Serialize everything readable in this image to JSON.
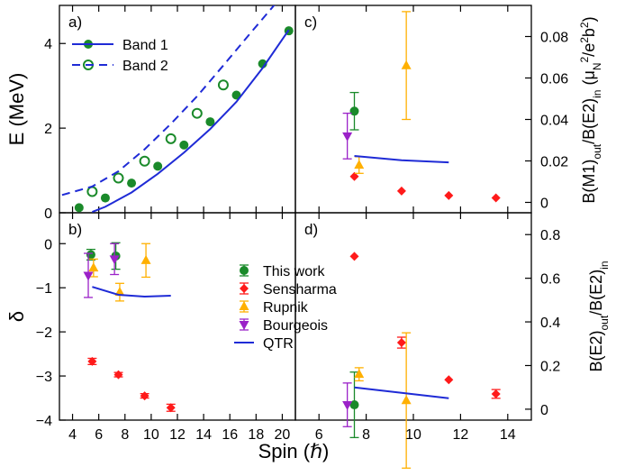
{
  "chart_data": [
    {
      "panel": "a)",
      "type": "scatter",
      "ylabel": "E (MeV)",
      "xlim": [
        3,
        21
      ],
      "ylim": [
        0,
        4.9
      ],
      "yticks": [
        0,
        2,
        4
      ],
      "xticks": [
        4,
        6,
        8,
        10,
        12,
        14,
        16,
        18,
        20
      ],
      "legend": {
        "position": "top-left",
        "entries": [
          "Band 1",
          "Band 2"
        ]
      },
      "series": [
        {
          "name": "Band 1",
          "kind": "points",
          "marker": "filled-circle",
          "color": "#1a8a2a",
          "x": [
            4.5,
            6.5,
            8.5,
            10.5,
            12.5,
            14.5,
            16.5,
            18.5,
            20.5
          ],
          "y": [
            0.12,
            0.35,
            0.7,
            1.1,
            1.6,
            2.15,
            2.78,
            3.52,
            4.3
          ]
        },
        {
          "name": "Band 2",
          "kind": "points",
          "marker": "open-circle",
          "color": "#1a8a2a",
          "x": [
            5.5,
            7.5,
            9.5,
            11.5,
            13.5,
            15.5
          ],
          "y": [
            0.5,
            0.82,
            1.22,
            1.75,
            2.35,
            3.02
          ]
        },
        {
          "name": "Band 1",
          "kind": "line",
          "style": "solid",
          "color": "#1f2bd6",
          "x": [
            5.5,
            6.5,
            8.5,
            10.5,
            12.5,
            14.5,
            16.5,
            18.5,
            20.5
          ],
          "y": [
            0.02,
            0.14,
            0.48,
            0.92,
            1.42,
            1.98,
            2.62,
            3.42,
            4.32
          ]
        },
        {
          "name": "Band 2",
          "kind": "line",
          "style": "dashed",
          "color": "#1f2bd6",
          "x": [
            3.2,
            5.5,
            7.5,
            9.5,
            11.5,
            13.5,
            15.5,
            17.5,
            19.5
          ],
          "y": [
            0.42,
            0.62,
            0.98,
            1.5,
            2.1,
            2.75,
            3.48,
            4.22,
            4.95
          ]
        }
      ]
    },
    {
      "panel": "b)",
      "type": "scatter",
      "ylabel": "δ",
      "xlabel": "Spin (ℏ)",
      "xlim": [
        3,
        21
      ],
      "ylim": [
        -4,
        0.7
      ],
      "yticks": [
        0,
        -1,
        -2,
        -3,
        -4
      ],
      "xticks": [
        4,
        6,
        8,
        10,
        12,
        14,
        16,
        18,
        20
      ],
      "series": [
        {
          "name": "This work",
          "marker": "filled-circle",
          "color": "#1a8a2a",
          "points": [
            {
              "x": 5.4,
              "y": -0.25,
              "err": 0.12
            },
            {
              "x": 7.3,
              "y": -0.28,
              "err": 0.3
            }
          ]
        },
        {
          "name": "Sensharma",
          "marker": "diamond",
          "color": "#ff1a1a",
          "points": [
            {
              "x": 5.5,
              "y": -2.67,
              "err": 0.07
            },
            {
              "x": 7.5,
              "y": -2.97,
              "err": 0.05
            },
            {
              "x": 9.5,
              "y": -3.45,
              "err": 0.05
            },
            {
              "x": 11.5,
              "y": -3.72,
              "err": 0.08
            }
          ]
        },
        {
          "name": "Rupnik",
          "marker": "triangle-up",
          "color": "#ffb000",
          "points": [
            {
              "x": 5.6,
              "y": -0.55,
              "err": 0.2
            },
            {
              "x": 7.6,
              "y": -1.1,
              "err": 0.2
            },
            {
              "x": 9.6,
              "y": -0.38,
              "err": 0.38
            }
          ]
        },
        {
          "name": "Bourgeois",
          "marker": "triangle-down",
          "color": "#9b22c8",
          "points": [
            {
              "x": 5.2,
              "y": -0.72,
              "err": 0.5
            },
            {
              "x": 7.2,
              "y": -0.35,
              "err": 0.35
            }
          ]
        },
        {
          "name": "QTR",
          "kind": "line",
          "color": "#1f2bd6",
          "x": [
            5.5,
            7.5,
            9.5,
            11.5
          ],
          "y": [
            -0.98,
            -1.16,
            -1.2,
            -1.18
          ]
        }
      ],
      "legend": {
        "position": "center",
        "entries": [
          "This work",
          "Sensharma",
          "Rupnik",
          "Bourgeois",
          "QTR"
        ]
      }
    },
    {
      "panel": "c)",
      "type": "scatter",
      "ylabel": "B(M1)out/B(E2)in (μN²/e²b²)",
      "xlim": [
        5,
        15
      ],
      "ylim": [
        -0.005,
        0.095
      ],
      "yticks": [
        0,
        0.02,
        0.04,
        0.06,
        0.08
      ],
      "series": [
        {
          "name": "This work",
          "marker": "filled-circle",
          "color": "#1a8a2a",
          "points": [
            {
              "x": 7.5,
              "y": 0.044,
              "err": 0.009
            }
          ]
        },
        {
          "name": "Sensharma",
          "marker": "diamond",
          "color": "#ff1a1a",
          "points": [
            {
              "x": 7.5,
              "y": 0.0125
            },
            {
              "x": 9.5,
              "y": 0.0055
            },
            {
              "x": 11.5,
              "y": 0.0033
            },
            {
              "x": 13.5,
              "y": 0.0022
            }
          ]
        },
        {
          "name": "Rupnik",
          "marker": "triangle-up",
          "color": "#ffb000",
          "points": [
            {
              "x": 7.7,
              "y": 0.018,
              "err": 0.004
            },
            {
              "x": 9.7,
              "y": 0.066,
              "err": 0.026
            }
          ]
        },
        {
          "name": "Bourgeois",
          "marker": "triangle-down",
          "color": "#9b22c8",
          "points": [
            {
              "x": 7.2,
              "y": 0.032,
              "err": 0.011
            }
          ]
        },
        {
          "name": "QTR",
          "kind": "line",
          "color": "#1f2bd6",
          "x": [
            7.5,
            9.5,
            11.5
          ],
          "y": [
            0.0224,
            0.0203,
            0.0193
          ]
        }
      ]
    },
    {
      "panel": "d)",
      "type": "scatter",
      "ylabel": "B(E2)out/B(E2)in",
      "xlabel": "Spin (ℏ)",
      "xlim": [
        5,
        15
      ],
      "ylim": [
        -0.05,
        0.9
      ],
      "yticks": [
        0,
        0.2,
        0.4,
        0.6,
        0.8
      ],
      "xticks": [
        6,
        8,
        10,
        12,
        14
      ],
      "series": [
        {
          "name": "This work",
          "marker": "filled-circle",
          "color": "#1a8a2a",
          "points": [
            {
              "x": 7.5,
              "y": 0.02,
              "err": 0.15
            }
          ]
        },
        {
          "name": "Sensharma",
          "marker": "diamond",
          "color": "#ff1a1a",
          "points": [
            {
              "x": 7.5,
              "y": 0.7
            },
            {
              "x": 9.5,
              "y": 0.305,
              "err": 0.025
            },
            {
              "x": 11.5,
              "y": 0.135
            },
            {
              "x": 13.5,
              "y": 0.07,
              "err": 0.02
            }
          ]
        },
        {
          "name": "Rupnik",
          "marker": "triangle-up",
          "color": "#ffb000",
          "points": [
            {
              "x": 7.7,
              "y": 0.16,
              "err": 0.03
            },
            {
              "x": 9.7,
              "y": 0.04,
              "err": 0.31
            }
          ]
        },
        {
          "name": "Bourgeois",
          "marker": "triangle-down",
          "color": "#9b22c8",
          "points": [
            {
              "x": 7.2,
              "y": 0.02,
              "err": 0.1
            }
          ]
        },
        {
          "name": "QTR",
          "kind": "line",
          "color": "#1f2bd6",
          "x": [
            7.5,
            9.5,
            11.5
          ],
          "y": [
            0.1,
            0.075,
            0.05
          ]
        }
      ]
    }
  ]
}
